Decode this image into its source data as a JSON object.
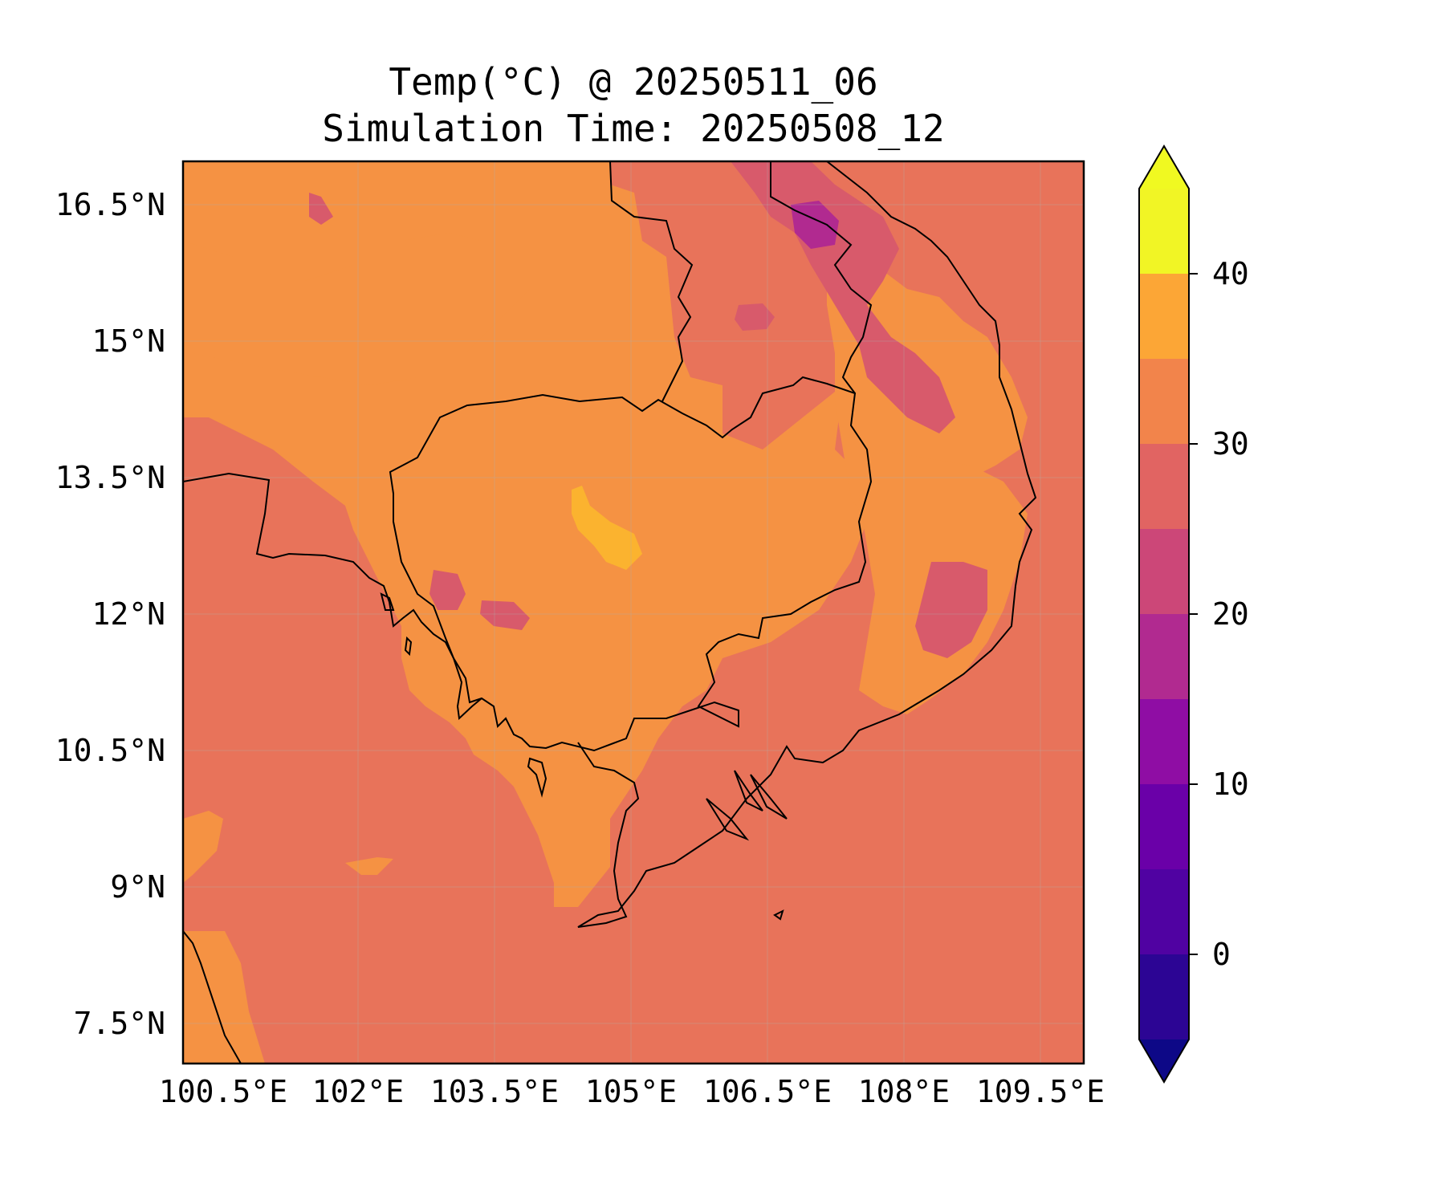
{
  "figure": {
    "title_line1": "Temp(°C) @ 20250511_06",
    "title_line2": "Simulation Time: 20250508_12"
  },
  "map": {
    "extent": {
      "lon_min": 100.5,
      "lon_max": 109.5,
      "lat_min": 7.5,
      "lat_max": 16.5
    },
    "lon_ticks": [
      "100.5°E",
      "102°E",
      "103.5°E",
      "105°E",
      "106.5°E",
      "108°E",
      "109.5°E"
    ],
    "lat_ticks": [
      "16.5°N",
      "15°N",
      "13.5°N",
      "12°N",
      "10.5°N",
      "9°N",
      "7.5°N"
    ],
    "gridlines": true,
    "coastlines": true,
    "background_fill_color": "#e8735a",
    "land_fill_color": "#f59243"
  },
  "colorbar": {
    "ticks": [
      "0",
      "10",
      "20",
      "30",
      "40"
    ],
    "levels": [
      -5,
      0,
      5,
      10,
      15,
      20,
      25,
      30,
      35,
      40,
      45
    ],
    "extend": "both",
    "colors": [
      "#0d0887",
      "#2c0594",
      "#5002a2",
      "#6a00a8",
      "#8f0da4",
      "#b12a90",
      "#cc4778",
      "#e16462",
      "#f2844b",
      "#fca636",
      "#f1f525",
      "#f0f921"
    ],
    "colormap": "plasma"
  }
}
